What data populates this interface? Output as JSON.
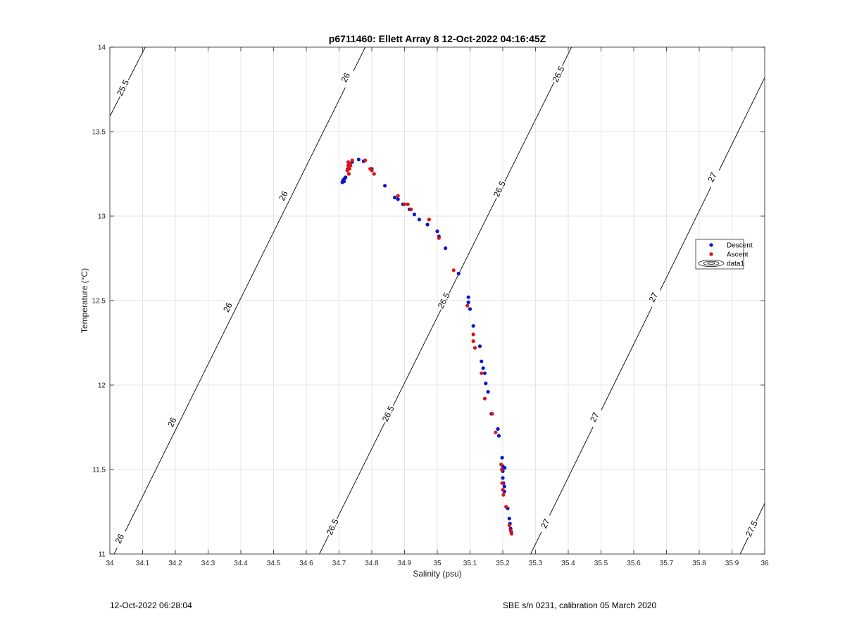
{
  "footer": {
    "left": "12-Oct-2022 06:28:04",
    "right": "SBE s/n 0231, calibration 05 March 2020"
  },
  "chart_data": {
    "type": "scatter",
    "title": "p6711460: Ellett Array 8 12-Oct-2022 04:16:45Z",
    "xlabel": "Salinity (psu)",
    "ylabel": "Temperature (°C)",
    "xlim": [
      34,
      36
    ],
    "ylim": [
      11,
      14
    ],
    "xticks": [
      34,
      34.1,
      34.2,
      34.3,
      34.4,
      34.5,
      34.6,
      34.7,
      34.8,
      34.9,
      35,
      35.1,
      35.2,
      35.3,
      35.4,
      35.5,
      35.6,
      35.7,
      35.8,
      35.9,
      36
    ],
    "yticks": [
      11,
      11.5,
      12,
      12.5,
      13,
      13.5,
      14
    ],
    "grid": true,
    "legend_position": "right",
    "legend": [
      "Descent",
      "Ascent",
      "data1"
    ],
    "colors": {
      "descent": "#0a14c8",
      "ascent": "#d81414",
      "contour": "#000000",
      "grid": "#e4e4e4"
    },
    "contours": [
      {
        "level": 25.5,
        "label": "25.5",
        "points": [
          [
            34.0,
            13.59
          ],
          [
            34.108,
            14.0
          ]
        ],
        "label_at": [
          [
            34.04,
            13.76
          ]
        ]
      },
      {
        "level": 26.0,
        "label": "26",
        "points": [
          [
            34.0,
            10.95
          ],
          [
            34.78,
            14.0
          ]
        ],
        "label_at": [
          [
            34.03,
            11.09
          ],
          [
            34.19,
            11.78
          ],
          [
            34.36,
            12.46
          ],
          [
            34.53,
            13.12
          ],
          [
            34.72,
            13.82
          ]
        ]
      },
      {
        "level": 26.5,
        "label": "26.5",
        "points": [
          [
            34.64,
            11.0
          ],
          [
            35.41,
            14.0
          ]
        ],
        "label_at": [
          [
            34.68,
            11.16
          ],
          [
            34.85,
            11.83
          ],
          [
            35.02,
            12.5
          ],
          [
            35.19,
            13.16
          ],
          [
            35.37,
            13.84
          ]
        ]
      },
      {
        "level": 27.0,
        "label": "27",
        "points": [
          [
            35.285,
            11.0
          ],
          [
            36.0,
            13.82
          ]
        ],
        "label_at": [
          [
            35.33,
            11.18
          ],
          [
            35.48,
            11.81
          ],
          [
            35.66,
            12.52
          ],
          [
            35.84,
            13.23
          ]
        ]
      },
      {
        "level": 27.5,
        "label": "27.5",
        "points": [
          [
            35.925,
            11.0
          ],
          [
            36.0,
            11.3
          ]
        ],
        "label_at": [
          [
            35.96,
            11.15
          ]
        ]
      }
    ],
    "series": [
      {
        "name": "Descent",
        "points": [
          [
            34.71,
            13.2
          ],
          [
            34.712,
            13.21
          ],
          [
            34.714,
            13.215
          ],
          [
            34.716,
            13.22
          ],
          [
            34.718,
            13.225
          ],
          [
            34.72,
            13.23
          ],
          [
            34.715,
            13.205
          ],
          [
            34.74,
            13.32
          ],
          [
            34.76,
            13.335
          ],
          [
            34.775,
            13.325
          ],
          [
            34.8,
            13.28
          ],
          [
            34.84,
            13.18
          ],
          [
            34.87,
            13.11
          ],
          [
            34.88,
            13.1
          ],
          [
            34.895,
            13.07
          ],
          [
            34.915,
            13.04
          ],
          [
            34.93,
            13.01
          ],
          [
            34.945,
            12.98
          ],
          [
            34.97,
            12.95
          ],
          [
            35.0,
            12.91
          ],
          [
            35.005,
            12.88
          ],
          [
            35.025,
            12.81
          ],
          [
            35.065,
            12.66
          ],
          [
            35.095,
            12.52
          ],
          [
            35.095,
            12.49
          ],
          [
            35.1,
            12.45
          ],
          [
            35.11,
            12.35
          ],
          [
            35.13,
            12.23
          ],
          [
            35.135,
            12.14
          ],
          [
            35.14,
            12.1
          ],
          [
            35.145,
            12.07
          ],
          [
            35.148,
            12.01
          ],
          [
            35.155,
            11.96
          ],
          [
            35.165,
            11.83
          ],
          [
            35.185,
            11.74
          ],
          [
            35.188,
            11.7
          ],
          [
            35.198,
            11.57
          ],
          [
            35.2,
            11.52
          ],
          [
            35.2,
            11.49
          ],
          [
            35.2,
            11.45
          ],
          [
            35.205,
            11.4
          ],
          [
            35.205,
            11.37
          ],
          [
            35.215,
            11.27
          ],
          [
            35.22,
            11.21
          ],
          [
            35.222,
            11.18
          ],
          [
            35.224,
            11.15
          ],
          [
            35.226,
            11.13
          ],
          [
            35.206,
            11.51
          ],
          [
            35.202,
            11.42
          ]
        ]
      },
      {
        "name": "Ascent",
        "points": [
          [
            34.725,
            13.27
          ],
          [
            34.726,
            13.28
          ],
          [
            34.728,
            13.3
          ],
          [
            34.73,
            13.29
          ],
          [
            34.731,
            13.31
          ],
          [
            34.732,
            13.28
          ],
          [
            34.735,
            13.3
          ],
          [
            34.728,
            13.32
          ],
          [
            34.73,
            13.25
          ],
          [
            34.74,
            13.33
          ],
          [
            34.78,
            13.33
          ],
          [
            34.795,
            13.28
          ],
          [
            34.8,
            13.27
          ],
          [
            34.807,
            13.25
          ],
          [
            34.88,
            13.12
          ],
          [
            34.9,
            13.07
          ],
          [
            34.91,
            13.07
          ],
          [
            34.92,
            13.04
          ],
          [
            34.975,
            12.98
          ],
          [
            35.005,
            12.87
          ],
          [
            35.05,
            12.68
          ],
          [
            35.092,
            12.47
          ],
          [
            35.11,
            12.3
          ],
          [
            35.11,
            12.26
          ],
          [
            35.115,
            12.22
          ],
          [
            35.135,
            12.07
          ],
          [
            35.145,
            11.92
          ],
          [
            35.168,
            11.83
          ],
          [
            35.178,
            11.72
          ],
          [
            35.195,
            11.53
          ],
          [
            35.197,
            11.5
          ],
          [
            35.198,
            11.42
          ],
          [
            35.2,
            11.38
          ],
          [
            35.202,
            11.35
          ],
          [
            35.21,
            11.28
          ],
          [
            35.22,
            11.17
          ],
          [
            35.224,
            11.14
          ],
          [
            35.227,
            11.12
          ]
        ]
      }
    ]
  }
}
